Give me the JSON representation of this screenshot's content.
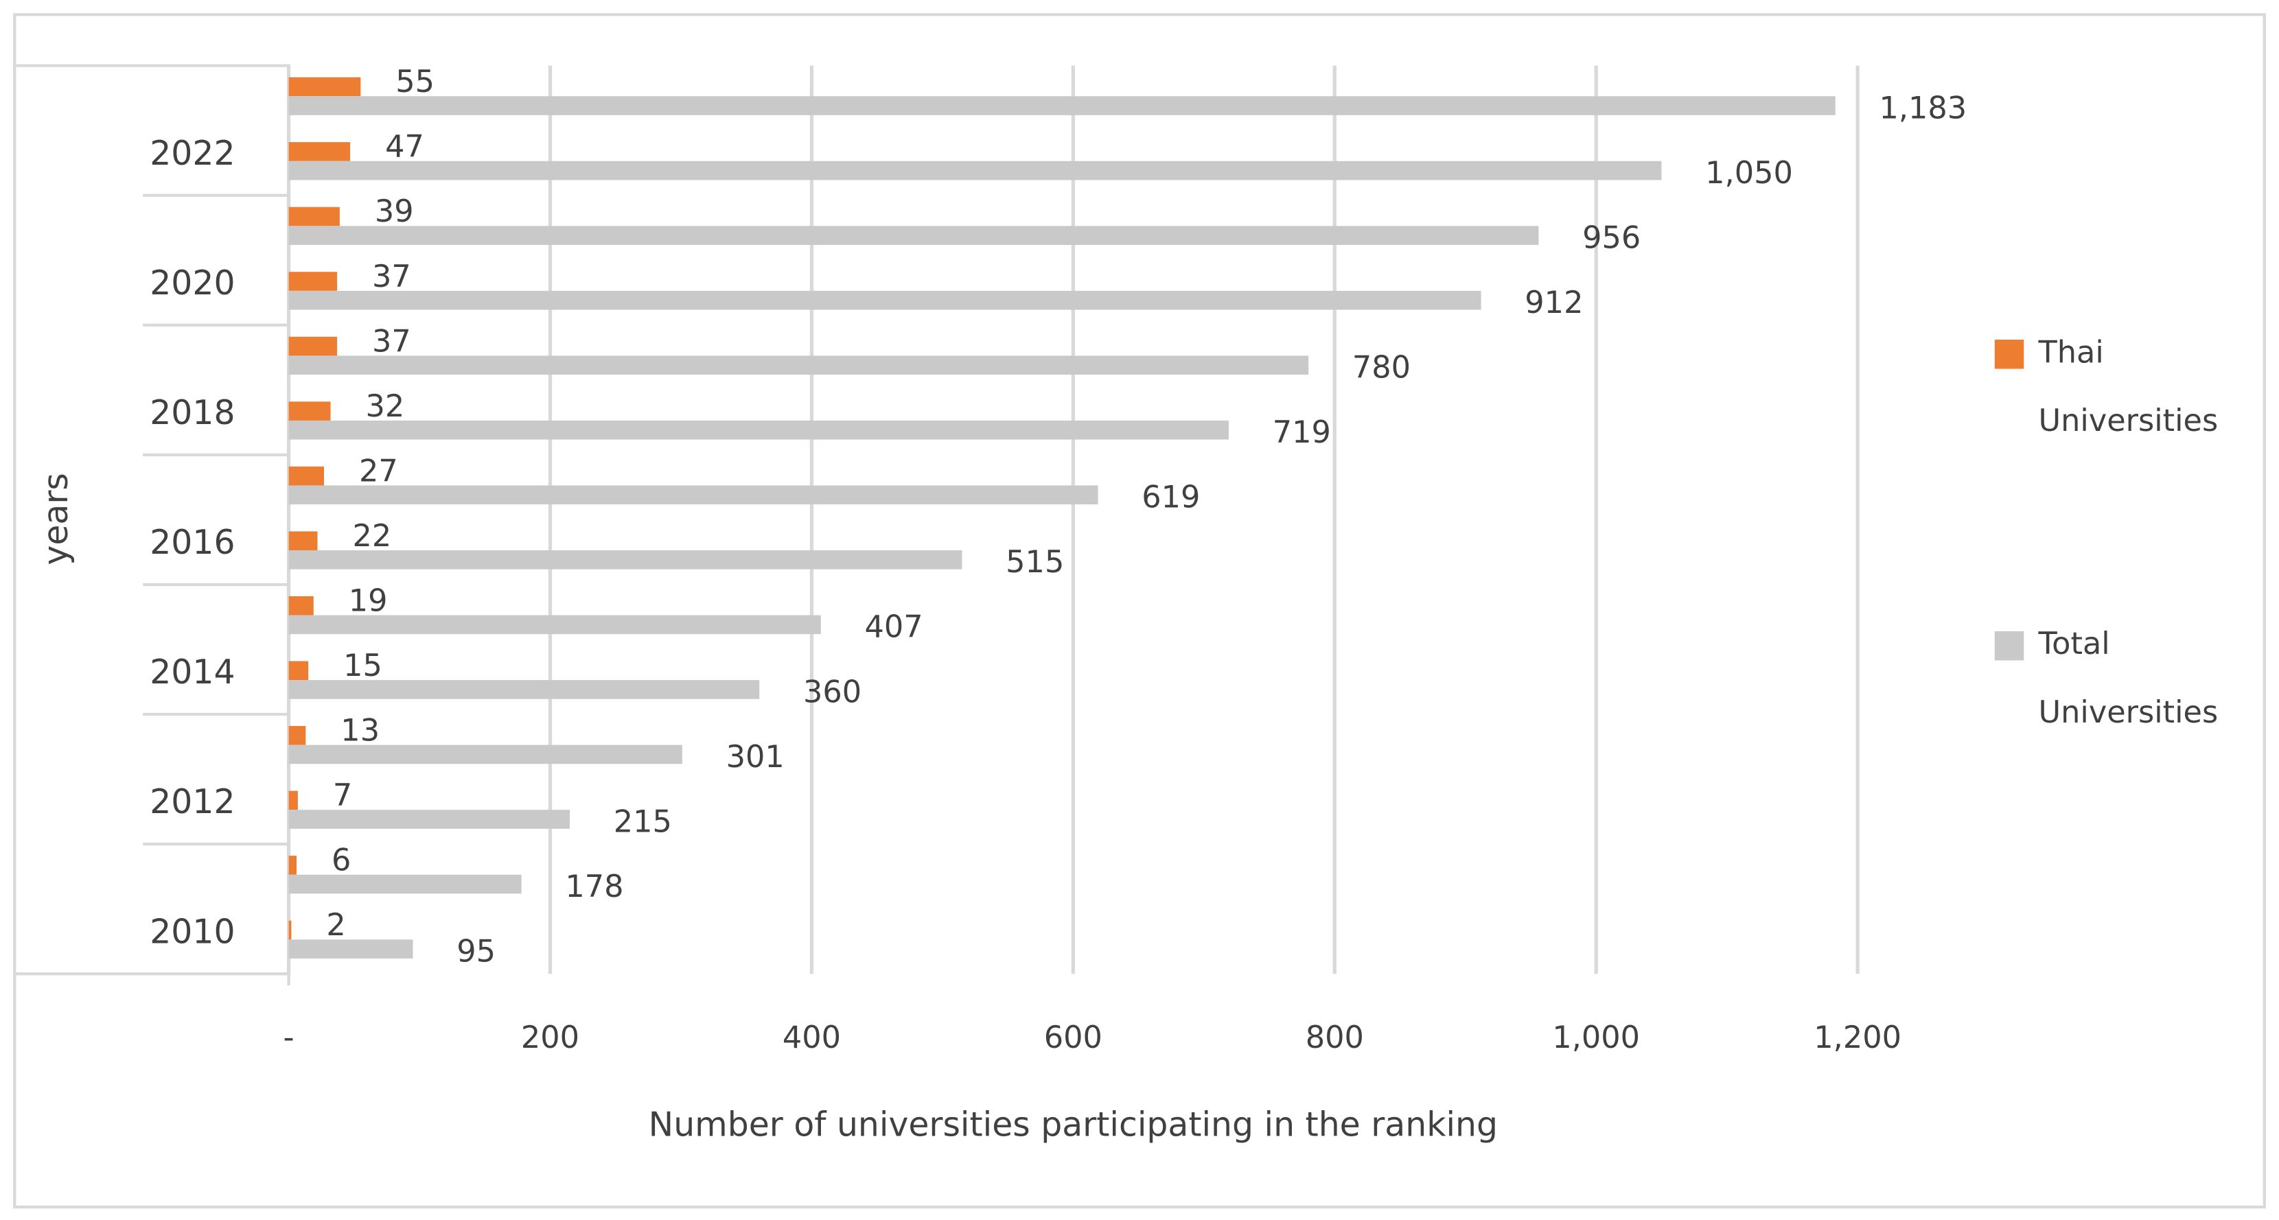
{
  "chart_data": {
    "type": "hbar",
    "x_label": "Number of universities participating in the ranking",
    "y_label": "years",
    "categories": [
      "2010",
      null,
      "2012",
      null,
      "2014",
      null,
      "2016",
      null,
      "2018",
      null,
      "2020",
      null,
      "2022",
      null
    ],
    "series": [
      {
        "name": "Thai Universities",
        "color": "#ed7d31",
        "values": [
          2,
          6,
          7,
          13,
          15,
          19,
          22,
          27,
          32,
          37,
          37,
          39,
          47,
          55
        ]
      },
      {
        "name": "Total Universities",
        "color": "#c9c9c9",
        "values": [
          95,
          178,
          215,
          301,
          360,
          407,
          515,
          619,
          719,
          780,
          912,
          956,
          1050,
          1183
        ],
        "value_labels": [
          "95",
          "178",
          "215",
          "301",
          "360",
          "407",
          "515",
          "619",
          "719",
          "780",
          "912",
          "956",
          "1,050",
          "1,183"
        ]
      }
    ],
    "xlim": [
      0,
      1200
    ],
    "xticks": [
      {
        "value": 0,
        "label": "-"
      },
      200,
      400,
      600,
      800,
      {
        "value": 1000,
        "label": "1,000"
      },
      {
        "value": 1200,
        "label": "1,200"
      }
    ],
    "grid": true,
    "legend": "right"
  }
}
